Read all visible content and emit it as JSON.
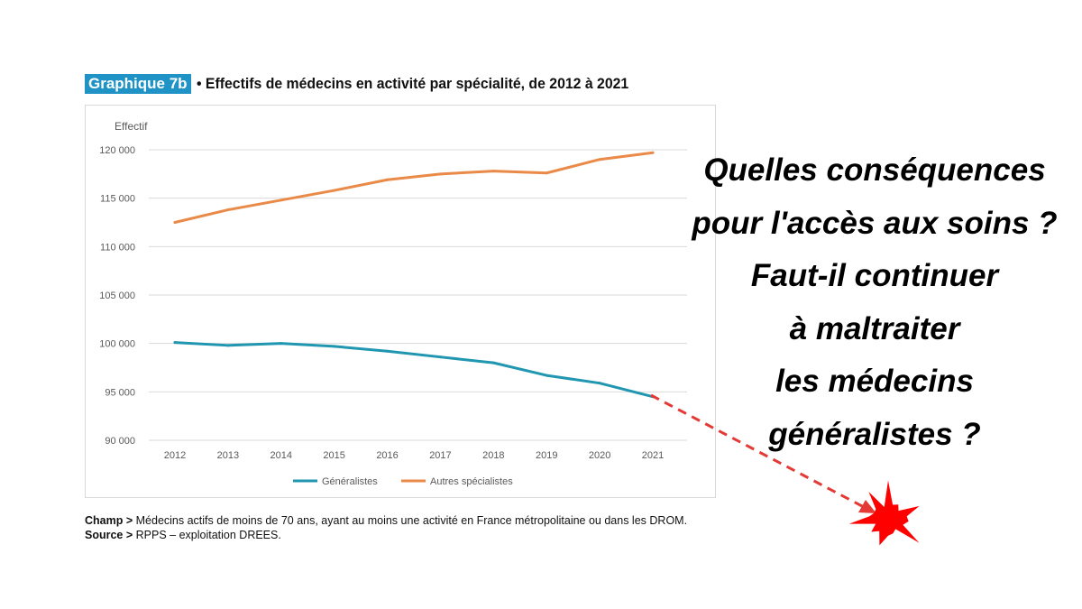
{
  "header": {
    "tag": "Graphique 7b",
    "title": "• Effectifs de médecins en activité par spécialité, de 2012 à 2021"
  },
  "notes": {
    "champ_label": "Champ >",
    "champ_text": "Médecins actifs de moins de 70 ans, ayant au moins une activité en France métropolitaine ou dans les DROM.",
    "source_label": "Source >",
    "source_text": "RPPS – exploitation DREES."
  },
  "question_lines": [
    "Quelles conséquences",
    "pour l'accès aux soins ?",
    "Faut-il continuer",
    "à maltraiter",
    "les médecins",
    "généralistes ?"
  ],
  "chart_data": {
    "type": "line",
    "ylabel": "Effectif",
    "ylim": [
      90000,
      120000
    ],
    "yticks": [
      90000,
      95000,
      100000,
      105000,
      110000,
      115000,
      120000
    ],
    "ytick_labels": [
      "90 000",
      "95 000",
      "100 000",
      "105 000",
      "110 000",
      "115 000",
      "120 000"
    ],
    "x": [
      "2012",
      "2013",
      "2014",
      "2015",
      "2016",
      "2017",
      "2018",
      "2019",
      "2020",
      "2021"
    ],
    "grid": true,
    "legend_position": "bottom",
    "series": [
      {
        "name": "Généralistes",
        "color": "#2196b0",
        "values": [
          100100,
          99800,
          100000,
          99700,
          99200,
          98600,
          98000,
          96700,
          95900,
          94500
        ]
      },
      {
        "name": "Autres spécialistes",
        "color": "#e98a48",
        "values": [
          112500,
          113800,
          114800,
          115800,
          116900,
          117500,
          117800,
          117600,
          119000,
          119700
        ]
      }
    ]
  },
  "annotation": {
    "arrow_color": "#e53935",
    "burst_color": "#ff0000",
    "burst_icon": "explosion-burst-icon"
  }
}
